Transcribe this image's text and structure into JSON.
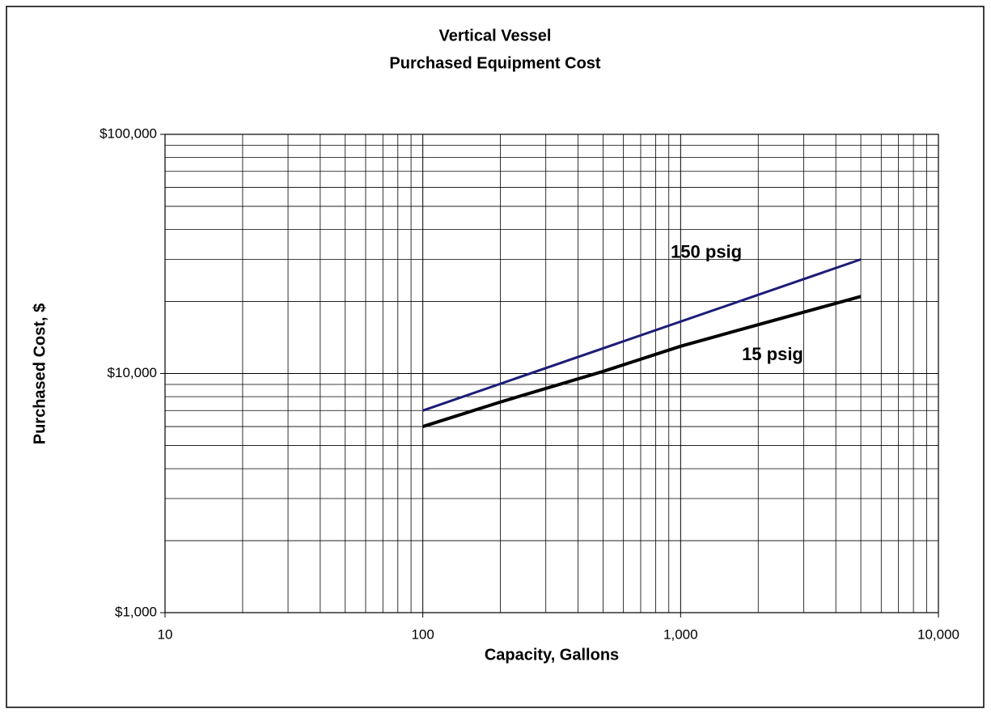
{
  "chart_data": {
    "type": "line",
    "title": "Vertical Vessel",
    "subtitle": "Purchased Equipment Cost",
    "x_label": "Capacity, Gallons",
    "y_label": "Purchased Cost, $",
    "xscale": "log",
    "yscale": "log",
    "xlim": [
      10,
      10000
    ],
    "ylim": [
      1000,
      100000
    ],
    "xticks": [
      10,
      100,
      {
        "value": 1000,
        "label": "1,000"
      },
      {
        "value": 10000,
        "label": "10,000"
      }
    ],
    "yticks": [
      {
        "value": 1000,
        "label": "$1,000"
      },
      {
        "value": 10000,
        "label": "$10,000"
      },
      {
        "value": 100000,
        "label": "$100,000"
      }
    ],
    "grid": true,
    "minor_grid": true,
    "series": [
      {
        "name": "150 psig",
        "color": "#1c1c78",
        "x": [
          100,
          5000
        ],
        "values": [
          7000,
          30000
        ]
      },
      {
        "name": "15 psig",
        "color": "#000000",
        "x": [
          100,
          200,
          500,
          1000,
          2000,
          5000
        ],
        "values": [
          6000,
          7600,
          10200,
          13000,
          16000,
          21000
        ]
      }
    ]
  }
}
